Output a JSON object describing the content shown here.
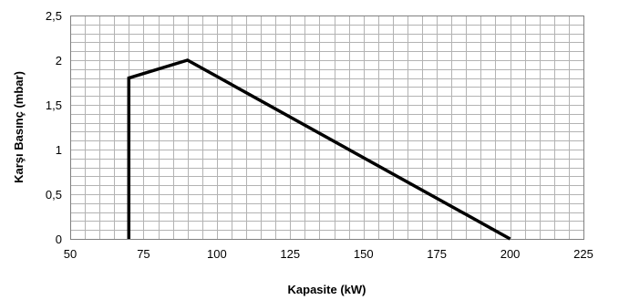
{
  "chart_data": {
    "type": "line",
    "title": "",
    "xlabel": "Kapasite  (kW)",
    "ylabel": "Karşı Basınç  (mbar)",
    "xlim": [
      50,
      225
    ],
    "ylim": [
      0,
      2.5
    ],
    "x_ticks": [
      50,
      75,
      100,
      125,
      150,
      175,
      200,
      225
    ],
    "x_tick_labels": [
      "50",
      "75",
      "100",
      "125",
      "150",
      "175",
      "200",
      "225"
    ],
    "y_ticks": [
      0,
      0.5,
      1,
      1.5,
      2,
      2.5
    ],
    "y_tick_labels": [
      "0",
      "0,5",
      "1",
      "1,5",
      "2",
      "2,5"
    ],
    "x_minor_step": 5,
    "y_minor_step": 0.1,
    "grid": true,
    "legend": "none",
    "series": [
      {
        "x": [
          70,
          70,
          90,
          200
        ],
        "y": [
          0,
          1.8,
          2,
          0
        ],
        "color": "#000000"
      }
    ],
    "colors": {
      "grid": "#b3b3b3",
      "axis": "#808080",
      "line": "#000000"
    }
  }
}
